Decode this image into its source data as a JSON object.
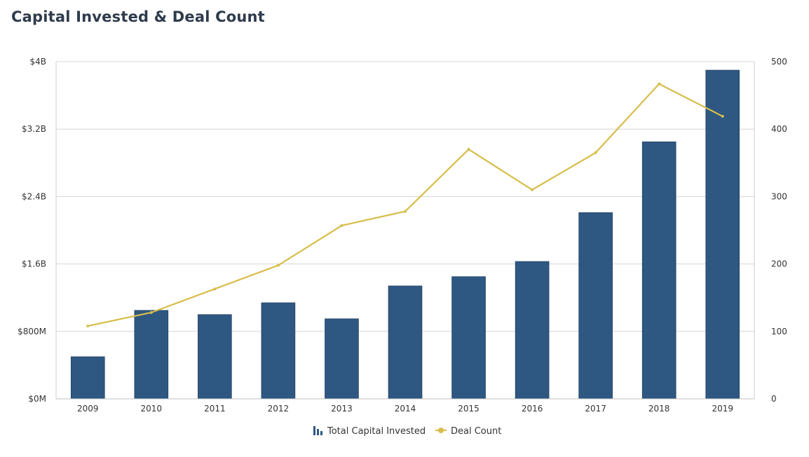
{
  "chart_data": {
    "type": "bar",
    "title": "Capital Invested & Deal Count",
    "categories": [
      "2009",
      "2010",
      "2011",
      "2012",
      "2013",
      "2014",
      "2015",
      "2016",
      "2017",
      "2018",
      "2019"
    ],
    "series": [
      {
        "name": "Total Capital Invested",
        "type": "bar",
        "axis": "left",
        "color": "#2e5782",
        "values": [
          0.5,
          1.05,
          1.0,
          1.14,
          0.95,
          1.34,
          1.45,
          1.63,
          2.21,
          3.05,
          3.9
        ]
      },
      {
        "name": "Deal Count",
        "type": "line",
        "axis": "right",
        "color": "#d8bd4a",
        "values": [
          108,
          128,
          163,
          198,
          257,
          278,
          370,
          310,
          365,
          467,
          419
        ]
      }
    ],
    "y_left": {
      "unit": "billion USD",
      "range": [
        0,
        4
      ],
      "ticks": [
        0,
        0.8,
        1.6,
        2.4,
        3.2,
        4
      ],
      "tick_labels": [
        "$0M",
        "$800M",
        "$1.6B",
        "$2.4B",
        "$3.2B",
        "$4B"
      ]
    },
    "y_right": {
      "range": [
        0,
        500
      ],
      "ticks": [
        0,
        100,
        200,
        300,
        400,
        500
      ],
      "tick_labels": [
        "0",
        "100",
        "200",
        "300",
        "400",
        "500"
      ]
    },
    "grid": true,
    "legend_position": "bottom-center"
  }
}
